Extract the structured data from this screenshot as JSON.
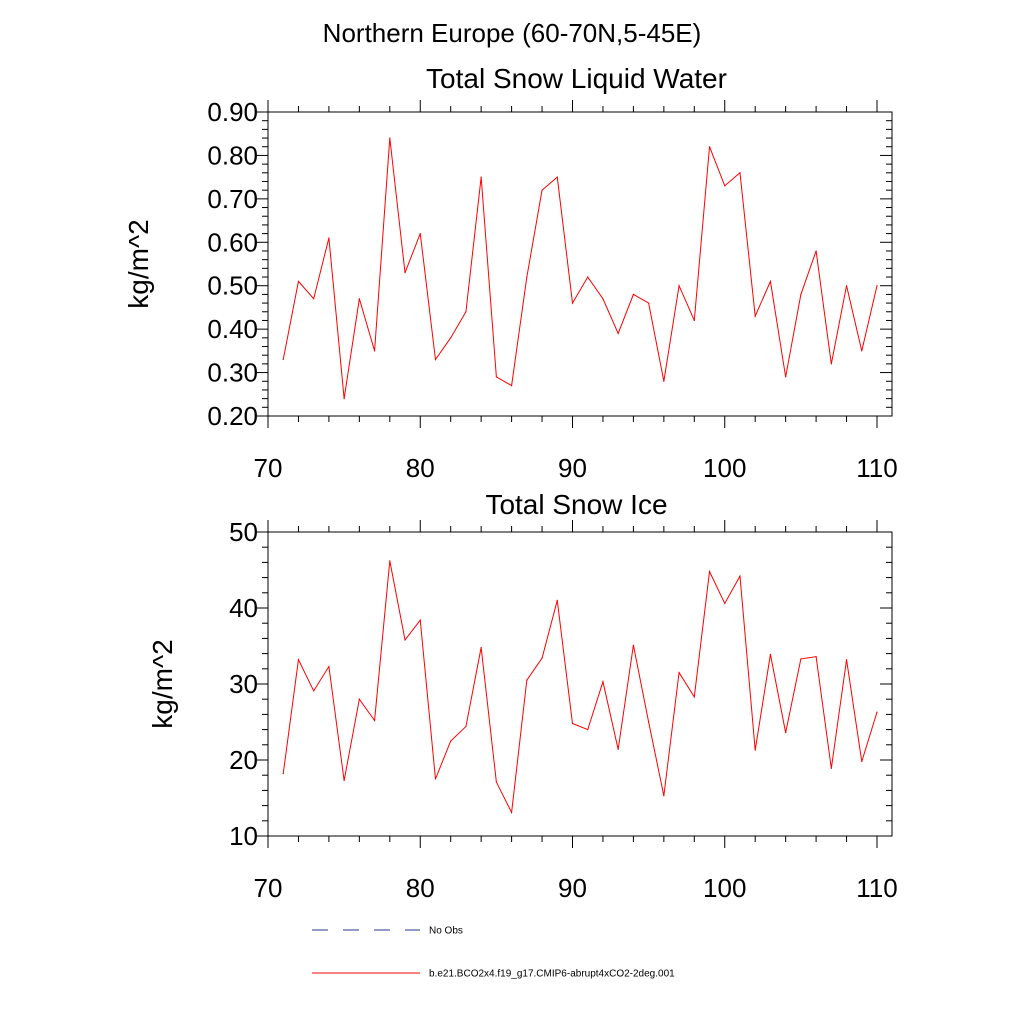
{
  "main_title": "Northern Europe (60-70N,5-45E)",
  "legend": [
    {
      "label": "No Obs",
      "color": "#2a3a8c",
      "dash": true
    },
    {
      "label": "b.e21.BCO2x4.f19_g17.CMIP6-abrupt4xCO2-2deg.001",
      "color": "#ff0000",
      "dash": false
    }
  ],
  "chart_data": [
    {
      "type": "line",
      "title": "Total Snow Liquid Water",
      "xlabel": "",
      "ylabel": "kg/m^2",
      "xlim": [
        70,
        110
      ],
      "ylim": [
        0.2,
        0.9
      ],
      "xticks": [
        70,
        80,
        90,
        100,
        110
      ],
      "xtick_labels": [
        "70",
        "80",
        "90",
        "100",
        "110"
      ],
      "yticks": [
        0.2,
        0.3,
        0.4,
        0.5,
        0.6,
        0.7,
        0.8,
        0.9
      ],
      "ytick_labels": [
        "0.20",
        "0.30",
        "0.40",
        "0.50",
        "0.60",
        "0.70",
        "0.80",
        "0.90"
      ],
      "grid": false,
      "series": [
        {
          "name": "b.e21.BCO2x4.f19_g17.CMIP6-abrupt4xCO2-2deg.001",
          "color": "#ff0000",
          "x": [
            71,
            72,
            73,
            74,
            75,
            76,
            77,
            78,
            79,
            80,
            81,
            82,
            83,
            84,
            85,
            86,
            87,
            88,
            89,
            90,
            91,
            92,
            93,
            94,
            95,
            96,
            97,
            98,
            99,
            100,
            101,
            102,
            103,
            104,
            105,
            106,
            107,
            108,
            109,
            110
          ],
          "values": [
            0.33,
            0.51,
            0.47,
            0.61,
            0.24,
            0.47,
            0.35,
            0.84,
            0.53,
            0.62,
            0.33,
            0.38,
            0.44,
            0.75,
            0.29,
            0.27,
            0.52,
            0.72,
            0.75,
            0.46,
            0.52,
            0.47,
            0.39,
            0.48,
            0.46,
            0.28,
            0.5,
            0.42,
            0.82,
            0.73,
            0.76,
            0.43,
            0.51,
            0.29,
            0.48,
            0.58,
            0.32,
            0.5,
            0.35,
            0.5
          ]
        }
      ]
    },
    {
      "type": "line",
      "title": "Total Snow Ice",
      "xlabel": "",
      "ylabel": "kg/m^2",
      "xlim": [
        70,
        110
      ],
      "ylim": [
        10,
        50
      ],
      "xticks": [
        70,
        80,
        90,
        100,
        110
      ],
      "xtick_labels": [
        "70",
        "80",
        "90",
        "100",
        "110"
      ],
      "yticks": [
        10,
        20,
        30,
        40,
        50
      ],
      "ytick_labels": [
        "10",
        "20",
        "30",
        "40",
        "50"
      ],
      "grid": false,
      "series": [
        {
          "name": "b.e21.BCO2x4.f19_g17.CMIP6-abrupt4xCO2-2deg.001",
          "color": "#ff0000",
          "x": [
            71,
            72,
            73,
            74,
            75,
            76,
            77,
            78,
            79,
            80,
            81,
            82,
            83,
            84,
            85,
            86,
            87,
            88,
            89,
            90,
            91,
            92,
            93,
            94,
            95,
            96,
            97,
            98,
            99,
            100,
            101,
            102,
            103,
            104,
            105,
            106,
            107,
            108,
            109,
            110
          ],
          "values": [
            18.2,
            33.2,
            29.1,
            32.3,
            17.3,
            28.0,
            25.2,
            46.2,
            35.8,
            38.4,
            17.5,
            22.5,
            24.4,
            34.8,
            17.1,
            13.1,
            30.5,
            33.4,
            41.0,
            24.8,
            24.0,
            30.3,
            21.4,
            35.1,
            25.0,
            15.3,
            31.5,
            28.3,
            44.8,
            40.6,
            44.2,
            21.3,
            33.9,
            23.6,
            33.3,
            33.6,
            18.9,
            33.2,
            19.8,
            26.3
          ]
        }
      ]
    }
  ]
}
